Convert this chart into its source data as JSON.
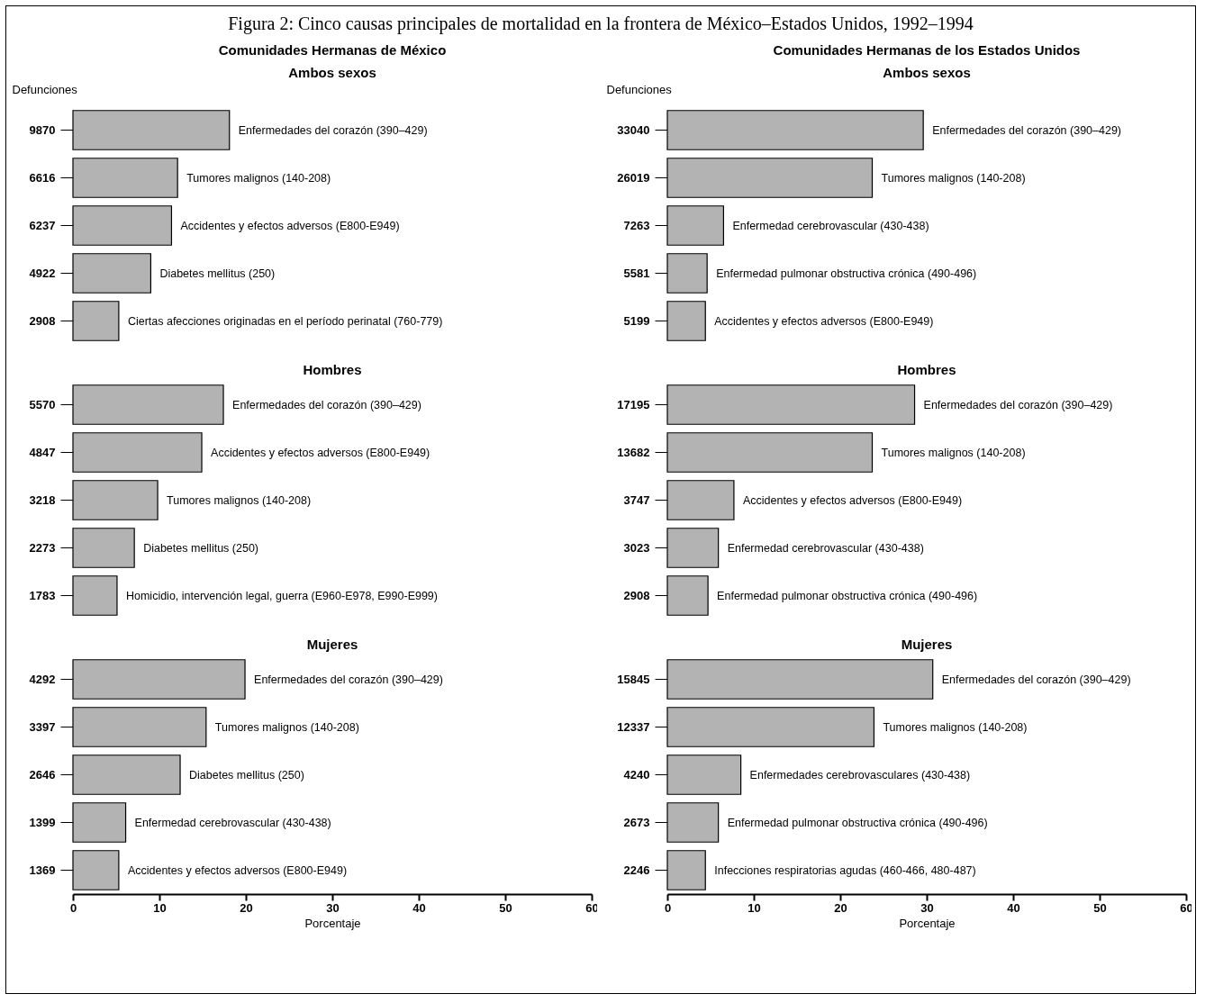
{
  "chart_data": [
    {
      "type": "other",
      "title": "Figura 2: Cinco causas principales de mortalidad en la frontera de México–Estados Unidos, 1992–1994"
    },
    {
      "type": "bar",
      "orientation": "horizontal",
      "title": "Comunidades Hermanas de México",
      "subtitle": "Ambos sexos",
      "ylabel": "Defunciones",
      "color": "#b3b3b3",
      "xlim": [
        0,
        60
      ],
      "xticks": [
        0,
        10,
        20,
        30,
        40,
        50,
        60
      ],
      "tick_labels": "y",
      "categories": [
        "9870",
        "6616",
        "6237",
        "4922",
        "2908"
      ],
      "values": [
        18.1,
        12.1,
        11.4,
        9.0,
        5.3
      ],
      "annotations": [
        {
          "text": "Enfermedades del corazón (390–429)",
          "x": 18.1,
          "y": "9870"
        },
        {
          "text": "Tumores malignos (140-208)",
          "x": 12.1,
          "y": "6616"
        },
        {
          "text": "Accidentes y efectos adversos (E800-E949)",
          "x": 11.4,
          "y": "6237"
        },
        {
          "text": "Diabetes mellitus (250)",
          "x": 9.0,
          "y": "4922"
        },
        {
          "text": "Ciertas afecciones originadas en el período perinatal (760-779)",
          "x": 5.3,
          "y": "2908"
        }
      ]
    },
    {
      "type": "bar",
      "orientation": "horizontal",
      "title": "Comunidades Hermanas de los Estados Unidos",
      "subtitle": "Ambos sexos",
      "ylabel": "Defunciones",
      "color": "#b3b3b3",
      "xlim": [
        0,
        60
      ],
      "xticks": [
        0,
        10,
        20,
        30,
        40,
        50,
        60
      ],
      "tick_labels": "y",
      "categories": [
        "33040",
        "26019",
        "7263",
        "5581",
        "5199"
      ],
      "values": [
        29.6,
        23.7,
        6.5,
        4.6,
        4.4
      ],
      "annotations": [
        {
          "text": "Enfermedades del corazón (390–429)",
          "x": 29.6,
          "y": "33040"
        },
        {
          "text": "Tumores malignos (140-208)",
          "x": 23.7,
          "y": "26019"
        },
        {
          "text": "Enfermedad cerebrovascular (430-438)",
          "x": 6.5,
          "y": "7263"
        },
        {
          "text": "Enfermedad pulmonar obstructiva crónica (490-496)",
          "x": 4.6,
          "y": "5581"
        },
        {
          "text": "Accidentes y efectos adversos (E800-E949)",
          "x": 4.4,
          "y": "5199"
        }
      ]
    },
    {
      "type": "bar",
      "orientation": "horizontal",
      "title": "Hombres",
      "color": "#b3b3b3",
      "xlim": [
        0,
        60
      ],
      "xticks": [
        0,
        10,
        20,
        30,
        40,
        50,
        60
      ],
      "tick_labels": "y",
      "categories": [
        "5570",
        "4847",
        "3218",
        "2273",
        "1783"
      ],
      "values": [
        17.4,
        14.9,
        9.8,
        7.1,
        5.1
      ],
      "annotations": [
        {
          "text": "Enfermedades del corazón (390–429)",
          "x": 17.4,
          "y": "5570"
        },
        {
          "text": "Accidentes y efectos adversos (E800-E949)",
          "x": 14.9,
          "y": "4847"
        },
        {
          "text": "Tumores malignos (140-208)",
          "x": 9.8,
          "y": "3218"
        },
        {
          "text": "Diabetes mellitus (250)",
          "x": 7.1,
          "y": "2273"
        },
        {
          "text": "Homicidio, intervención legal, guerra (E960-E978, E990-E999)",
          "x": 5.1,
          "y": "1783"
        }
      ]
    },
    {
      "type": "bar",
      "orientation": "horizontal",
      "title": "Hombres",
      "color": "#b3b3b3",
      "xlim": [
        0,
        60
      ],
      "xticks": [
        0,
        10,
        20,
        30,
        40,
        50,
        60
      ],
      "tick_labels": "y",
      "categories": [
        "17195",
        "13682",
        "3747",
        "3023",
        "2908"
      ],
      "values": [
        28.6,
        23.7,
        7.7,
        5.9,
        4.7
      ],
      "annotations": [
        {
          "text": "Enfermedades del corazón (390–429)",
          "x": 28.6,
          "y": "17195"
        },
        {
          "text": "Tumores malignos (140-208)",
          "x": 23.7,
          "y": "13682"
        },
        {
          "text": "Accidentes y efectos adversos (E800-E949)",
          "x": 7.7,
          "y": "3747"
        },
        {
          "text": "Enfermedad cerebrovascular (430-438)",
          "x": 5.9,
          "y": "3023"
        },
        {
          "text": "Enfermedad pulmonar obstructiva crónica (490-496)",
          "x": 4.7,
          "y": "2908"
        }
      ]
    },
    {
      "type": "bar",
      "orientation": "horizontal",
      "title": "Mujeres",
      "xlabel": "Porcentaje",
      "color": "#b3b3b3",
      "xlim": [
        0,
        60
      ],
      "xticks": [
        0,
        10,
        20,
        30,
        40,
        50,
        60
      ],
      "categories": [
        "4292",
        "3397",
        "2646",
        "1399",
        "1369"
      ],
      "values": [
        19.9,
        15.4,
        12.4,
        6.1,
        5.3
      ],
      "annotations": [
        {
          "text": "Enfermedades del corazón (390–429)",
          "x": 19.9,
          "y": "4292"
        },
        {
          "text": "Tumores malignos (140-208)",
          "x": 15.4,
          "y": "3397"
        },
        {
          "text": "Diabetes mellitus (250)",
          "x": 12.4,
          "y": "2646"
        },
        {
          "text": "Enfermedad cerebrovascular (430-438)",
          "x": 6.1,
          "y": "1399"
        },
        {
          "text": "Accidentes y efectos adversos (E800-E949)",
          "x": 5.3,
          "y": "1369"
        }
      ]
    },
    {
      "type": "bar",
      "orientation": "horizontal",
      "title": "Mujeres",
      "xlabel": "Porcentaje",
      "color": "#b3b3b3",
      "xlim": [
        0,
        60
      ],
      "xticks": [
        0,
        10,
        20,
        30,
        40,
        50,
        60
      ],
      "categories": [
        "15845",
        "12337",
        "4240",
        "2673",
        "2246"
      ],
      "values": [
        30.7,
        23.9,
        8.5,
        5.9,
        4.4
      ],
      "annotations": [
        {
          "text": "Enfermedades del corazón (390–429)",
          "x": 30.7,
          "y": "15845"
        },
        {
          "text": "Tumores malignos (140-208)",
          "x": 23.9,
          "y": "12337"
        },
        {
          "text": "Enfermedades cerebrovasculares (430-438)",
          "x": 8.5,
          "y": "4240"
        },
        {
          "text": "Enfermedad pulmonar obstructiva crónica (490-496)",
          "x": 5.9,
          "y": "2673"
        },
        {
          "text": "Infecciones respiratorias agudas (460-466, 480-487)",
          "x": 4.4,
          "y": "2246"
        }
      ]
    }
  ]
}
